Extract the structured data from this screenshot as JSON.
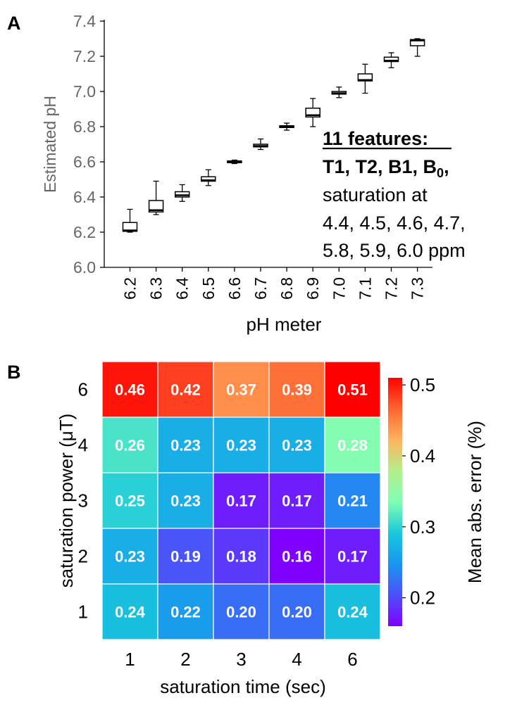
{
  "panels": {
    "a_label": "A",
    "b_label": "B"
  },
  "chart_data": [
    {
      "type": "box",
      "xlabel": "pH meter",
      "ylabel": "Estimated pH",
      "ylim": [
        6.0,
        7.4
      ],
      "yticks": [
        "6.0",
        "6.2",
        "6.4",
        "6.6",
        "6.8",
        "7.0",
        "7.2",
        "7.4"
      ],
      "categories": [
        "6.2",
        "6.3",
        "6.4",
        "6.5",
        "6.6",
        "6.7",
        "6.8",
        "6.9",
        "7.0",
        "7.1",
        "7.2",
        "7.3"
      ],
      "boxes": [
        {
          "min": 6.2,
          "q1": 6.205,
          "median": 6.21,
          "q3": 6.255,
          "max": 6.33
        },
        {
          "min": 6.3,
          "q1": 6.315,
          "median": 6.325,
          "q3": 6.38,
          "max": 6.49
        },
        {
          "min": 6.375,
          "q1": 6.4,
          "median": 6.41,
          "q3": 6.43,
          "max": 6.47
        },
        {
          "min": 6.465,
          "q1": 6.49,
          "median": 6.495,
          "q3": 6.515,
          "max": 6.555
        },
        {
          "min": 6.59,
          "q1": 6.595,
          "median": 6.6,
          "q3": 6.605,
          "max": 6.61
        },
        {
          "min": 6.67,
          "q1": 6.685,
          "median": 6.69,
          "q3": 6.7,
          "max": 6.73
        },
        {
          "min": 6.78,
          "q1": 6.795,
          "median": 6.8,
          "q3": 6.805,
          "max": 6.82
        },
        {
          "min": 6.8,
          "q1": 6.855,
          "median": 6.865,
          "q3": 6.905,
          "max": 6.96
        },
        {
          "min": 6.965,
          "q1": 6.985,
          "median": 6.99,
          "q3": 7.0,
          "max": 7.025
        },
        {
          "min": 6.99,
          "q1": 7.06,
          "median": 7.065,
          "q3": 7.1,
          "max": 7.155
        },
        {
          "min": 7.135,
          "q1": 7.17,
          "median": 7.175,
          "q3": 7.195,
          "max": 7.22
        },
        {
          "min": 7.2,
          "q1": 7.26,
          "median": 7.29,
          "q3": 7.295,
          "max": 7.3
        }
      ],
      "annotation": {
        "heading": "11 features:",
        "line2_prefix": "T1, T2, B1, B",
        "line2_subscript": "0",
        "line2_suffix": ",",
        "line3": "saturation at",
        "line4": "4.4, 4.5, 4.6, 4.7,",
        "line5": "5.8, 5.9, 6.0 ppm"
      }
    },
    {
      "type": "heatmap",
      "xlabel": "saturation time (sec)",
      "ylabel": "saturation power (μT)",
      "x": [
        "1",
        "2",
        "3",
        "4",
        "6"
      ],
      "y": [
        "6",
        "4",
        "3",
        "2",
        "1"
      ],
      "values": [
        [
          0.46,
          0.42,
          0.37,
          0.39,
          0.51
        ],
        [
          0.26,
          0.23,
          0.23,
          0.23,
          0.28
        ],
        [
          0.25,
          0.23,
          0.17,
          0.17,
          0.21
        ],
        [
          0.23,
          0.19,
          0.18,
          0.16,
          0.17
        ],
        [
          0.24,
          0.22,
          0.2,
          0.2,
          0.24
        ]
      ],
      "labels": [
        [
          "0.46",
          "0.42",
          "0.37",
          "0.39",
          "0.51"
        ],
        [
          "0.26",
          "0.23",
          "0.23",
          "0.23",
          "0.28"
        ],
        [
          "0.25",
          "0.23",
          "0.17",
          "0.17",
          "0.21"
        ],
        [
          "0.23",
          "0.19",
          "0.18",
          "0.16",
          "0.17"
        ],
        [
          "0.24",
          "0.22",
          "0.20",
          "0.20",
          "0.24"
        ]
      ],
      "colorbar": {
        "label": "Mean abs. error (%)",
        "range": [
          0.16,
          0.51
        ],
        "ticks": [
          0.2,
          0.3,
          0.4,
          0.5
        ],
        "tick_labels": [
          "0.2",
          "0.3",
          "0.4",
          "0.5"
        ],
        "colormap": "rainbow"
      }
    }
  ]
}
